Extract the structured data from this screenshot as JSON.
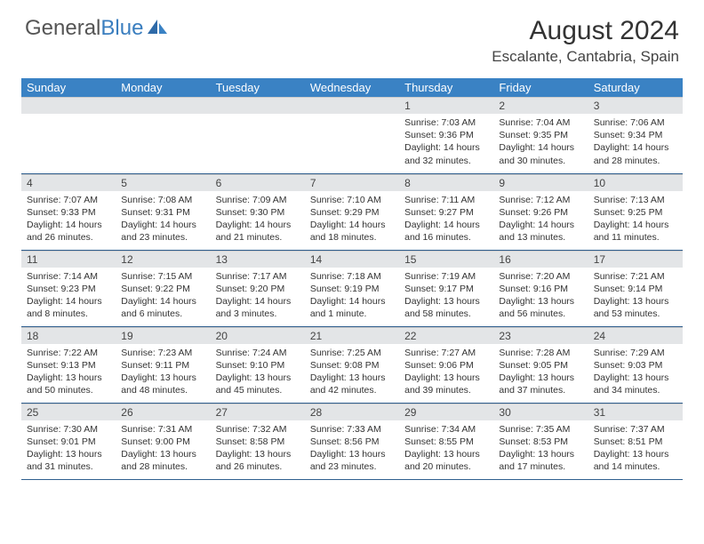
{
  "logo": {
    "word1": "General",
    "word2": "Blue"
  },
  "title": "August 2024",
  "location": "Escalante, Cantabria, Spain",
  "colors": {
    "header_bg": "#3a82c4",
    "daynum_bg": "#e3e5e7",
    "row_divider": "#2f5f8f",
    "text": "#333333",
    "logo_gray": "#555555",
    "logo_blue": "#3a7ebf"
  },
  "day_headers": [
    "Sunday",
    "Monday",
    "Tuesday",
    "Wednesday",
    "Thursday",
    "Friday",
    "Saturday"
  ],
  "weeks": [
    [
      null,
      null,
      null,
      null,
      {
        "n": "1",
        "sr": "7:03 AM",
        "ss": "9:36 PM",
        "dl": "14 hours and 32 minutes."
      },
      {
        "n": "2",
        "sr": "7:04 AM",
        "ss": "9:35 PM",
        "dl": "14 hours and 30 minutes."
      },
      {
        "n": "3",
        "sr": "7:06 AM",
        "ss": "9:34 PM",
        "dl": "14 hours and 28 minutes."
      }
    ],
    [
      {
        "n": "4",
        "sr": "7:07 AM",
        "ss": "9:33 PM",
        "dl": "14 hours and 26 minutes."
      },
      {
        "n": "5",
        "sr": "7:08 AM",
        "ss": "9:31 PM",
        "dl": "14 hours and 23 minutes."
      },
      {
        "n": "6",
        "sr": "7:09 AM",
        "ss": "9:30 PM",
        "dl": "14 hours and 21 minutes."
      },
      {
        "n": "7",
        "sr": "7:10 AM",
        "ss": "9:29 PM",
        "dl": "14 hours and 18 minutes."
      },
      {
        "n": "8",
        "sr": "7:11 AM",
        "ss": "9:27 PM",
        "dl": "14 hours and 16 minutes."
      },
      {
        "n": "9",
        "sr": "7:12 AM",
        "ss": "9:26 PM",
        "dl": "14 hours and 13 minutes."
      },
      {
        "n": "10",
        "sr": "7:13 AM",
        "ss": "9:25 PM",
        "dl": "14 hours and 11 minutes."
      }
    ],
    [
      {
        "n": "11",
        "sr": "7:14 AM",
        "ss": "9:23 PM",
        "dl": "14 hours and 8 minutes."
      },
      {
        "n": "12",
        "sr": "7:15 AM",
        "ss": "9:22 PM",
        "dl": "14 hours and 6 minutes."
      },
      {
        "n": "13",
        "sr": "7:17 AM",
        "ss": "9:20 PM",
        "dl": "14 hours and 3 minutes."
      },
      {
        "n": "14",
        "sr": "7:18 AM",
        "ss": "9:19 PM",
        "dl": "14 hours and 1 minute."
      },
      {
        "n": "15",
        "sr": "7:19 AM",
        "ss": "9:17 PM",
        "dl": "13 hours and 58 minutes."
      },
      {
        "n": "16",
        "sr": "7:20 AM",
        "ss": "9:16 PM",
        "dl": "13 hours and 56 minutes."
      },
      {
        "n": "17",
        "sr": "7:21 AM",
        "ss": "9:14 PM",
        "dl": "13 hours and 53 minutes."
      }
    ],
    [
      {
        "n": "18",
        "sr": "7:22 AM",
        "ss": "9:13 PM",
        "dl": "13 hours and 50 minutes."
      },
      {
        "n": "19",
        "sr": "7:23 AM",
        "ss": "9:11 PM",
        "dl": "13 hours and 48 minutes."
      },
      {
        "n": "20",
        "sr": "7:24 AM",
        "ss": "9:10 PM",
        "dl": "13 hours and 45 minutes."
      },
      {
        "n": "21",
        "sr": "7:25 AM",
        "ss": "9:08 PM",
        "dl": "13 hours and 42 minutes."
      },
      {
        "n": "22",
        "sr": "7:27 AM",
        "ss": "9:06 PM",
        "dl": "13 hours and 39 minutes."
      },
      {
        "n": "23",
        "sr": "7:28 AM",
        "ss": "9:05 PM",
        "dl": "13 hours and 37 minutes."
      },
      {
        "n": "24",
        "sr": "7:29 AM",
        "ss": "9:03 PM",
        "dl": "13 hours and 34 minutes."
      }
    ],
    [
      {
        "n": "25",
        "sr": "7:30 AM",
        "ss": "9:01 PM",
        "dl": "13 hours and 31 minutes."
      },
      {
        "n": "26",
        "sr": "7:31 AM",
        "ss": "9:00 PM",
        "dl": "13 hours and 28 minutes."
      },
      {
        "n": "27",
        "sr": "7:32 AM",
        "ss": "8:58 PM",
        "dl": "13 hours and 26 minutes."
      },
      {
        "n": "28",
        "sr": "7:33 AM",
        "ss": "8:56 PM",
        "dl": "13 hours and 23 minutes."
      },
      {
        "n": "29",
        "sr": "7:34 AM",
        "ss": "8:55 PM",
        "dl": "13 hours and 20 minutes."
      },
      {
        "n": "30",
        "sr": "7:35 AM",
        "ss": "8:53 PM",
        "dl": "13 hours and 17 minutes."
      },
      {
        "n": "31",
        "sr": "7:37 AM",
        "ss": "8:51 PM",
        "dl": "13 hours and 14 minutes."
      }
    ]
  ],
  "labels": {
    "sunrise": "Sunrise:",
    "sunset": "Sunset:",
    "daylight": "Daylight:"
  }
}
